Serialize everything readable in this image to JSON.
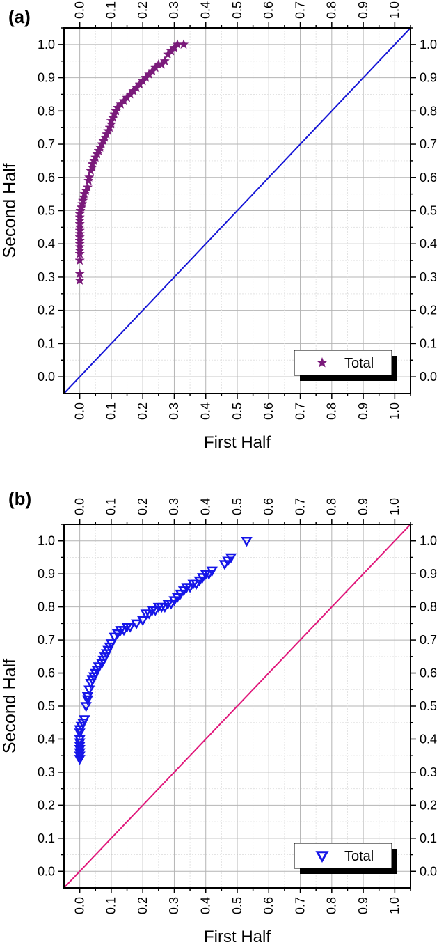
{
  "chart_data": [
    {
      "panel_label": "(a)",
      "type": "scatter",
      "xlabel": "First Half",
      "ylabel": "Second Half",
      "xlim": [
        -0.05,
        1.05
      ],
      "ylim": [
        -0.05,
        1.05
      ],
      "xticks": [
        "0.0",
        "0.1",
        "0.2",
        "0.3",
        "0.4",
        "0.5",
        "0.6",
        "0.7",
        "0.8",
        "0.9",
        "1.0"
      ],
      "yticks": [
        "0.0",
        "0.1",
        "0.2",
        "0.3",
        "0.4",
        "0.5",
        "0.6",
        "0.7",
        "0.8",
        "0.9",
        "1.0"
      ],
      "grid": true,
      "legend": "bottom-right",
      "reference_line": {
        "from": [
          -0.05,
          -0.05
        ],
        "to": [
          1.05,
          1.05
        ],
        "color": "#1515d6"
      },
      "series": [
        {
          "name": "Total",
          "marker": "star",
          "color": "#7a1a7a",
          "x": [
            0.0,
            0.0,
            0.0,
            0.0,
            0.0,
            0.0,
            0.0,
            0.0,
            0.0,
            0.0,
            0.0,
            0.0,
            0.0,
            0.0,
            0.0,
            0.0,
            0.002,
            0.005,
            0.008,
            0.01,
            0.012,
            0.015,
            0.02,
            0.025,
            0.028,
            0.03,
            0.035,
            0.04,
            0.04,
            0.045,
            0.05,
            0.055,
            0.06,
            0.065,
            0.07,
            0.075,
            0.08,
            0.085,
            0.09,
            0.095,
            0.1,
            0.1,
            0.105,
            0.11,
            0.115,
            0.12,
            0.13,
            0.14,
            0.15,
            0.16,
            0.17,
            0.18,
            0.19,
            0.2,
            0.21,
            0.22,
            0.23,
            0.24,
            0.25,
            0.26,
            0.27,
            0.28,
            0.29,
            0.3,
            0.31,
            0.33
          ],
          "y": [
            0.29,
            0.31,
            0.35,
            0.37,
            0.38,
            0.39,
            0.4,
            0.41,
            0.42,
            0.43,
            0.44,
            0.45,
            0.46,
            0.47,
            0.48,
            0.49,
            0.5,
            0.51,
            0.52,
            0.53,
            0.54,
            0.55,
            0.56,
            0.57,
            0.59,
            0.6,
            0.62,
            0.63,
            0.64,
            0.65,
            0.66,
            0.67,
            0.68,
            0.69,
            0.7,
            0.71,
            0.72,
            0.73,
            0.74,
            0.75,
            0.76,
            0.77,
            0.78,
            0.79,
            0.8,
            0.81,
            0.82,
            0.83,
            0.84,
            0.85,
            0.86,
            0.87,
            0.88,
            0.89,
            0.9,
            0.91,
            0.92,
            0.93,
            0.94,
            0.94,
            0.95,
            0.97,
            0.98,
            0.99,
            1.0,
            1.0
          ]
        }
      ]
    },
    {
      "panel_label": "(b)",
      "type": "scatter",
      "xlabel": "First Half",
      "ylabel": "Second Half",
      "xlim": [
        -0.05,
        1.05
      ],
      "ylim": [
        -0.05,
        1.05
      ],
      "xticks": [
        "0.0",
        "0.1",
        "0.2",
        "0.3",
        "0.4",
        "0.5",
        "0.6",
        "0.7",
        "0.8",
        "0.9",
        "1.0"
      ],
      "yticks": [
        "0.0",
        "0.1",
        "0.2",
        "0.3",
        "0.4",
        "0.5",
        "0.6",
        "0.7",
        "0.8",
        "0.9",
        "1.0"
      ],
      "grid": true,
      "legend": "bottom-right",
      "reference_line": {
        "from": [
          -0.05,
          -0.05
        ],
        "to": [
          1.05,
          1.05
        ],
        "color": "#e0177a"
      },
      "series": [
        {
          "name": "Total",
          "marker": "down-triangle",
          "color": "#1515e8",
          "x": [
            0.0,
            0.0,
            0.0,
            0.0,
            0.0,
            0.0,
            0.0,
            0.0,
            0.0,
            0.005,
            0.01,
            0.015,
            0.02,
            0.025,
            0.025,
            0.03,
            0.035,
            0.04,
            0.045,
            0.05,
            0.055,
            0.06,
            0.07,
            0.075,
            0.08,
            0.085,
            0.09,
            0.095,
            0.1,
            0.11,
            0.12,
            0.13,
            0.14,
            0.15,
            0.16,
            0.18,
            0.2,
            0.21,
            0.22,
            0.23,
            0.24,
            0.25,
            0.26,
            0.27,
            0.28,
            0.29,
            0.3,
            0.31,
            0.32,
            0.33,
            0.34,
            0.35,
            0.36,
            0.37,
            0.38,
            0.39,
            0.4,
            0.41,
            0.42,
            0.46,
            0.47,
            0.48,
            0.53
          ],
          "y": [
            0.34,
            0.35,
            0.36,
            0.37,
            0.38,
            0.39,
            0.4,
            0.42,
            0.43,
            0.44,
            0.45,
            0.46,
            0.5,
            0.52,
            0.53,
            0.55,
            0.57,
            0.58,
            0.59,
            0.6,
            0.61,
            0.62,
            0.63,
            0.64,
            0.65,
            0.66,
            0.67,
            0.68,
            0.69,
            0.71,
            0.72,
            0.73,
            0.73,
            0.74,
            0.74,
            0.75,
            0.76,
            0.78,
            0.78,
            0.79,
            0.79,
            0.8,
            0.8,
            0.8,
            0.81,
            0.81,
            0.82,
            0.83,
            0.84,
            0.85,
            0.86,
            0.86,
            0.87,
            0.87,
            0.88,
            0.89,
            0.9,
            0.9,
            0.91,
            0.93,
            0.94,
            0.95,
            1.0
          ]
        }
      ]
    }
  ]
}
